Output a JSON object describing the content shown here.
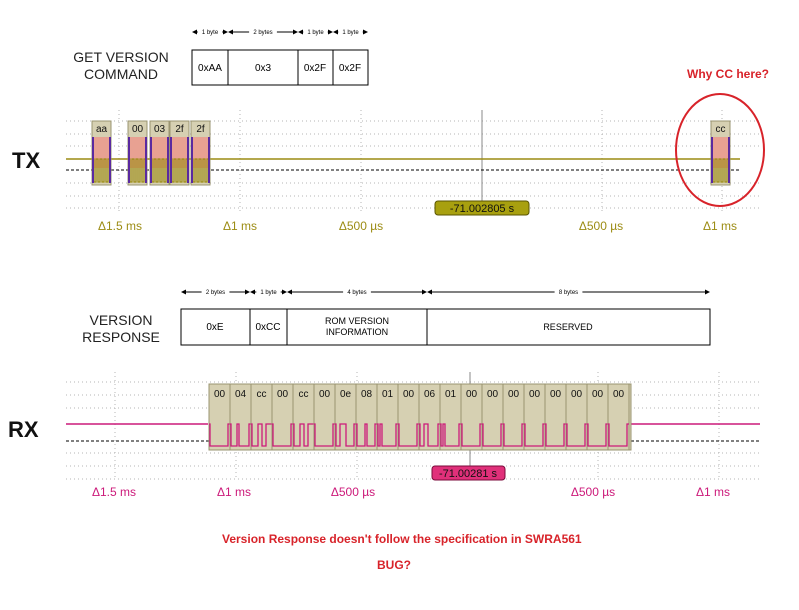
{
  "colors": {
    "tx_trace": "#9c8c14",
    "tx_fill": "#e8a192",
    "tx_byte_box": "#d6d0b2",
    "tx_pulse": "#5a2aa0",
    "rx_trace": "#cc1a7a",
    "rx_byte_box": "#d6d0b2",
    "annotation": "#d8232a",
    "tx_time_label": "#9c8c14",
    "rx_time_label": "#cc1a7a",
    "tx_marker_bg": "#a8a010",
    "rx_marker_bg": "#e0307a"
  },
  "get_version": {
    "title_line1": "GET VERSION",
    "title_line2": "COMMAND",
    "sizes": [
      "1 byte",
      "2 bytes",
      "1 byte",
      "1 byte"
    ],
    "fields": [
      "0xAA",
      "0x3",
      "0x2F",
      "0x2F"
    ]
  },
  "tx": {
    "label": "TX",
    "bytes": [
      "aa",
      "00",
      "03",
      "2f",
      "2f",
      "cc"
    ],
    "marker": "-71.002805 s",
    "times": [
      "Δ1.5 ms",
      "Δ1 ms",
      "Δ500 µs",
      "Δ500 µs",
      "Δ1 ms"
    ]
  },
  "annotation_cc": "Why CC here?",
  "version_response": {
    "title_line1": "VERSION",
    "title_line2": "RESPONSE",
    "sizes": [
      "2 bytes",
      "1 byte",
      "4 bytes",
      "8 bytes"
    ],
    "fields": [
      "0xE",
      "0xCC",
      "ROM VERSION",
      "INFORMATION",
      "RESERVED"
    ]
  },
  "rx": {
    "label": "RX",
    "bytes": [
      "00",
      "04",
      "cc",
      "00",
      "cc",
      "00",
      "0e",
      "08",
      "01",
      "00",
      "06",
      "01",
      "00",
      "00",
      "00",
      "00",
      "00",
      "00",
      "00",
      "00"
    ],
    "marker": "-71.00281 s",
    "times": [
      "Δ1.5 ms",
      "Δ1 ms",
      "Δ500 µs",
      "Δ500 µs",
      "Δ1 ms"
    ]
  },
  "footer": {
    "line1": "Version Response doesn't follow the specification in SWRA561",
    "line2": "BUG?"
  }
}
